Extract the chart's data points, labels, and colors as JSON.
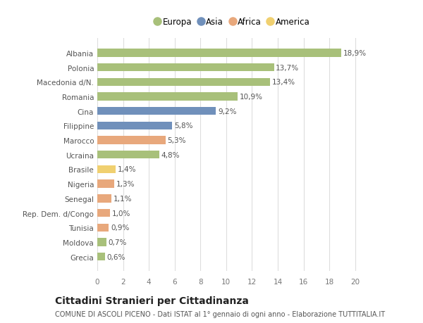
{
  "categories": [
    "Albania",
    "Polonia",
    "Macedonia d/N.",
    "Romania",
    "Cina",
    "Filippine",
    "Marocco",
    "Ucraina",
    "Brasile",
    "Nigeria",
    "Senegal",
    "Rep. Dem. d/Congo",
    "Tunisia",
    "Moldova",
    "Grecia"
  ],
  "values": [
    18.9,
    13.7,
    13.4,
    10.9,
    9.2,
    5.8,
    5.3,
    4.8,
    1.4,
    1.3,
    1.1,
    1.0,
    0.9,
    0.7,
    0.6
  ],
  "labels": [
    "18,9%",
    "13,7%",
    "13,4%",
    "10,9%",
    "9,2%",
    "5,8%",
    "5,3%",
    "4,8%",
    "1,4%",
    "1,3%",
    "1,1%",
    "1,0%",
    "0,9%",
    "0,7%",
    "0,6%"
  ],
  "continents": [
    "Europa",
    "Europa",
    "Europa",
    "Europa",
    "Asia",
    "Asia",
    "Africa",
    "Europa",
    "America",
    "Africa",
    "Africa",
    "Africa",
    "Africa",
    "Europa",
    "Europa"
  ],
  "colors": {
    "Europa": "#a8c07a",
    "Asia": "#7090bb",
    "Africa": "#e8a87c",
    "America": "#f0d070"
  },
  "legend_order": [
    "Europa",
    "Asia",
    "Africa",
    "America"
  ],
  "xlim": [
    0,
    21
  ],
  "xticks": [
    0,
    2,
    4,
    6,
    8,
    10,
    12,
    14,
    16,
    18,
    20
  ],
  "bg_color": "#ffffff",
  "plot_bg_color": "#ffffff",
  "title": "Cittadini Stranieri per Cittadinanza",
  "subtitle": "COMUNE DI ASCOLI PICENO - Dati ISTAT al 1° gennaio di ogni anno - Elaborazione TUTTITALIA.IT",
  "grid_color": "#dddddd",
  "label_fontsize": 7.5,
  "value_fontsize": 7.5,
  "title_fontsize": 10,
  "subtitle_fontsize": 7,
  "bar_height": 0.55
}
